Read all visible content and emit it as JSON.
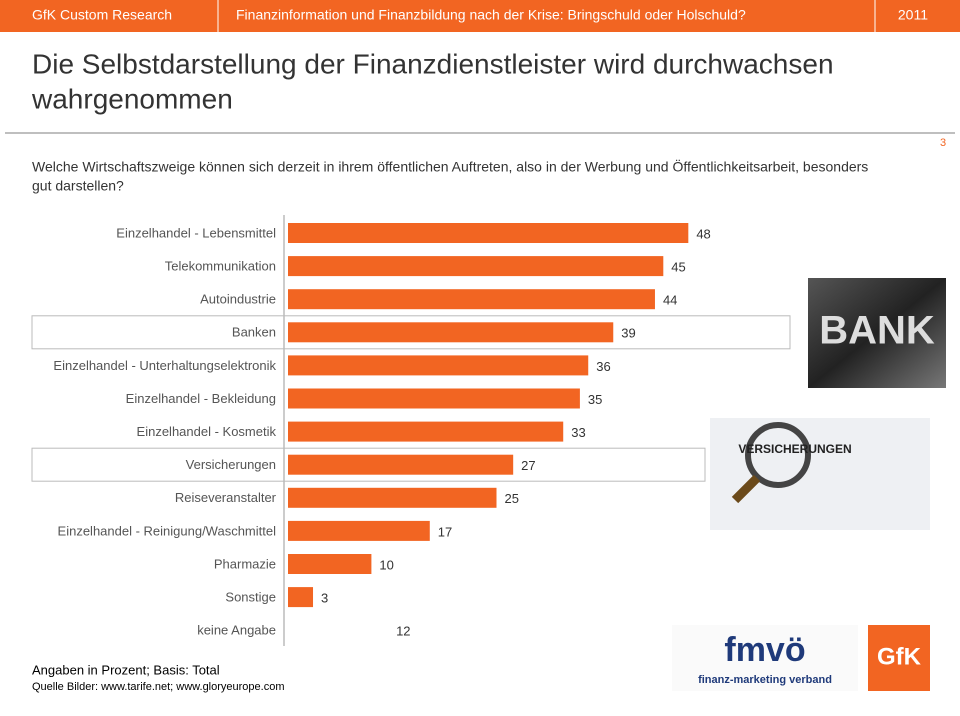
{
  "header": {
    "left": "GfK Custom Research",
    "center": "Finanzinformation und Finanzbildung nach der Krise: Bringschuld oder Holschuld?",
    "right": "2011"
  },
  "page_number": "3",
  "title_lines": [
    "Die Selbstdarstellung der Finanzdienstleister wird durchwachsen",
    "wahrgenommen"
  ],
  "question_lines": [
    "Welche Wirtschaftszweige können sich derzeit in ihrem öffentlichen Auftreten, also in der Werbung und Öffentlichkeitsarbeit, besonders",
    "gut darstellen?"
  ],
  "chart_data": {
    "type": "hbar",
    "categories": [
      "Einzelhandel - Lebensmittel",
      "Telekommunikation",
      "Autoindustrie",
      "Banken",
      "Einzelhandel - Unterhaltungselektronik",
      "Einzelhandel - Bekleidung",
      "Einzelhandel - Kosmetik",
      "Versicherungen",
      "Reiseveranstalter",
      "Einzelhandel - Reinigung/Waschmittel",
      "Pharmazie",
      "Sonstige",
      "keine Angabe"
    ],
    "values": [
      48,
      45,
      44,
      39,
      36,
      35,
      33,
      27,
      25,
      17,
      10,
      3,
      12
    ],
    "colors": [
      "#f26522",
      "#f26522",
      "#f26522",
      "#f26522",
      "#f26522",
      "#f26522",
      "#f26522",
      "#f26522",
      "#f26522",
      "#f26522",
      "#f26522",
      "#f26522",
      "#ffffff"
    ],
    "highlighted": [
      3,
      7
    ],
    "xlim": [
      0,
      50
    ]
  },
  "images": {
    "bank": "BANK",
    "insurance": "VERSICHERUNGEN",
    "fmvo": "fmvö",
    "fmvo_sub": "finanz-marketing verband",
    "gfk": "GfK"
  },
  "footer": {
    "basis": "Angaben in Prozent; Basis: Total",
    "source": "Quelle Bilder: www.tarife.net; www.gloryeurope.com"
  }
}
